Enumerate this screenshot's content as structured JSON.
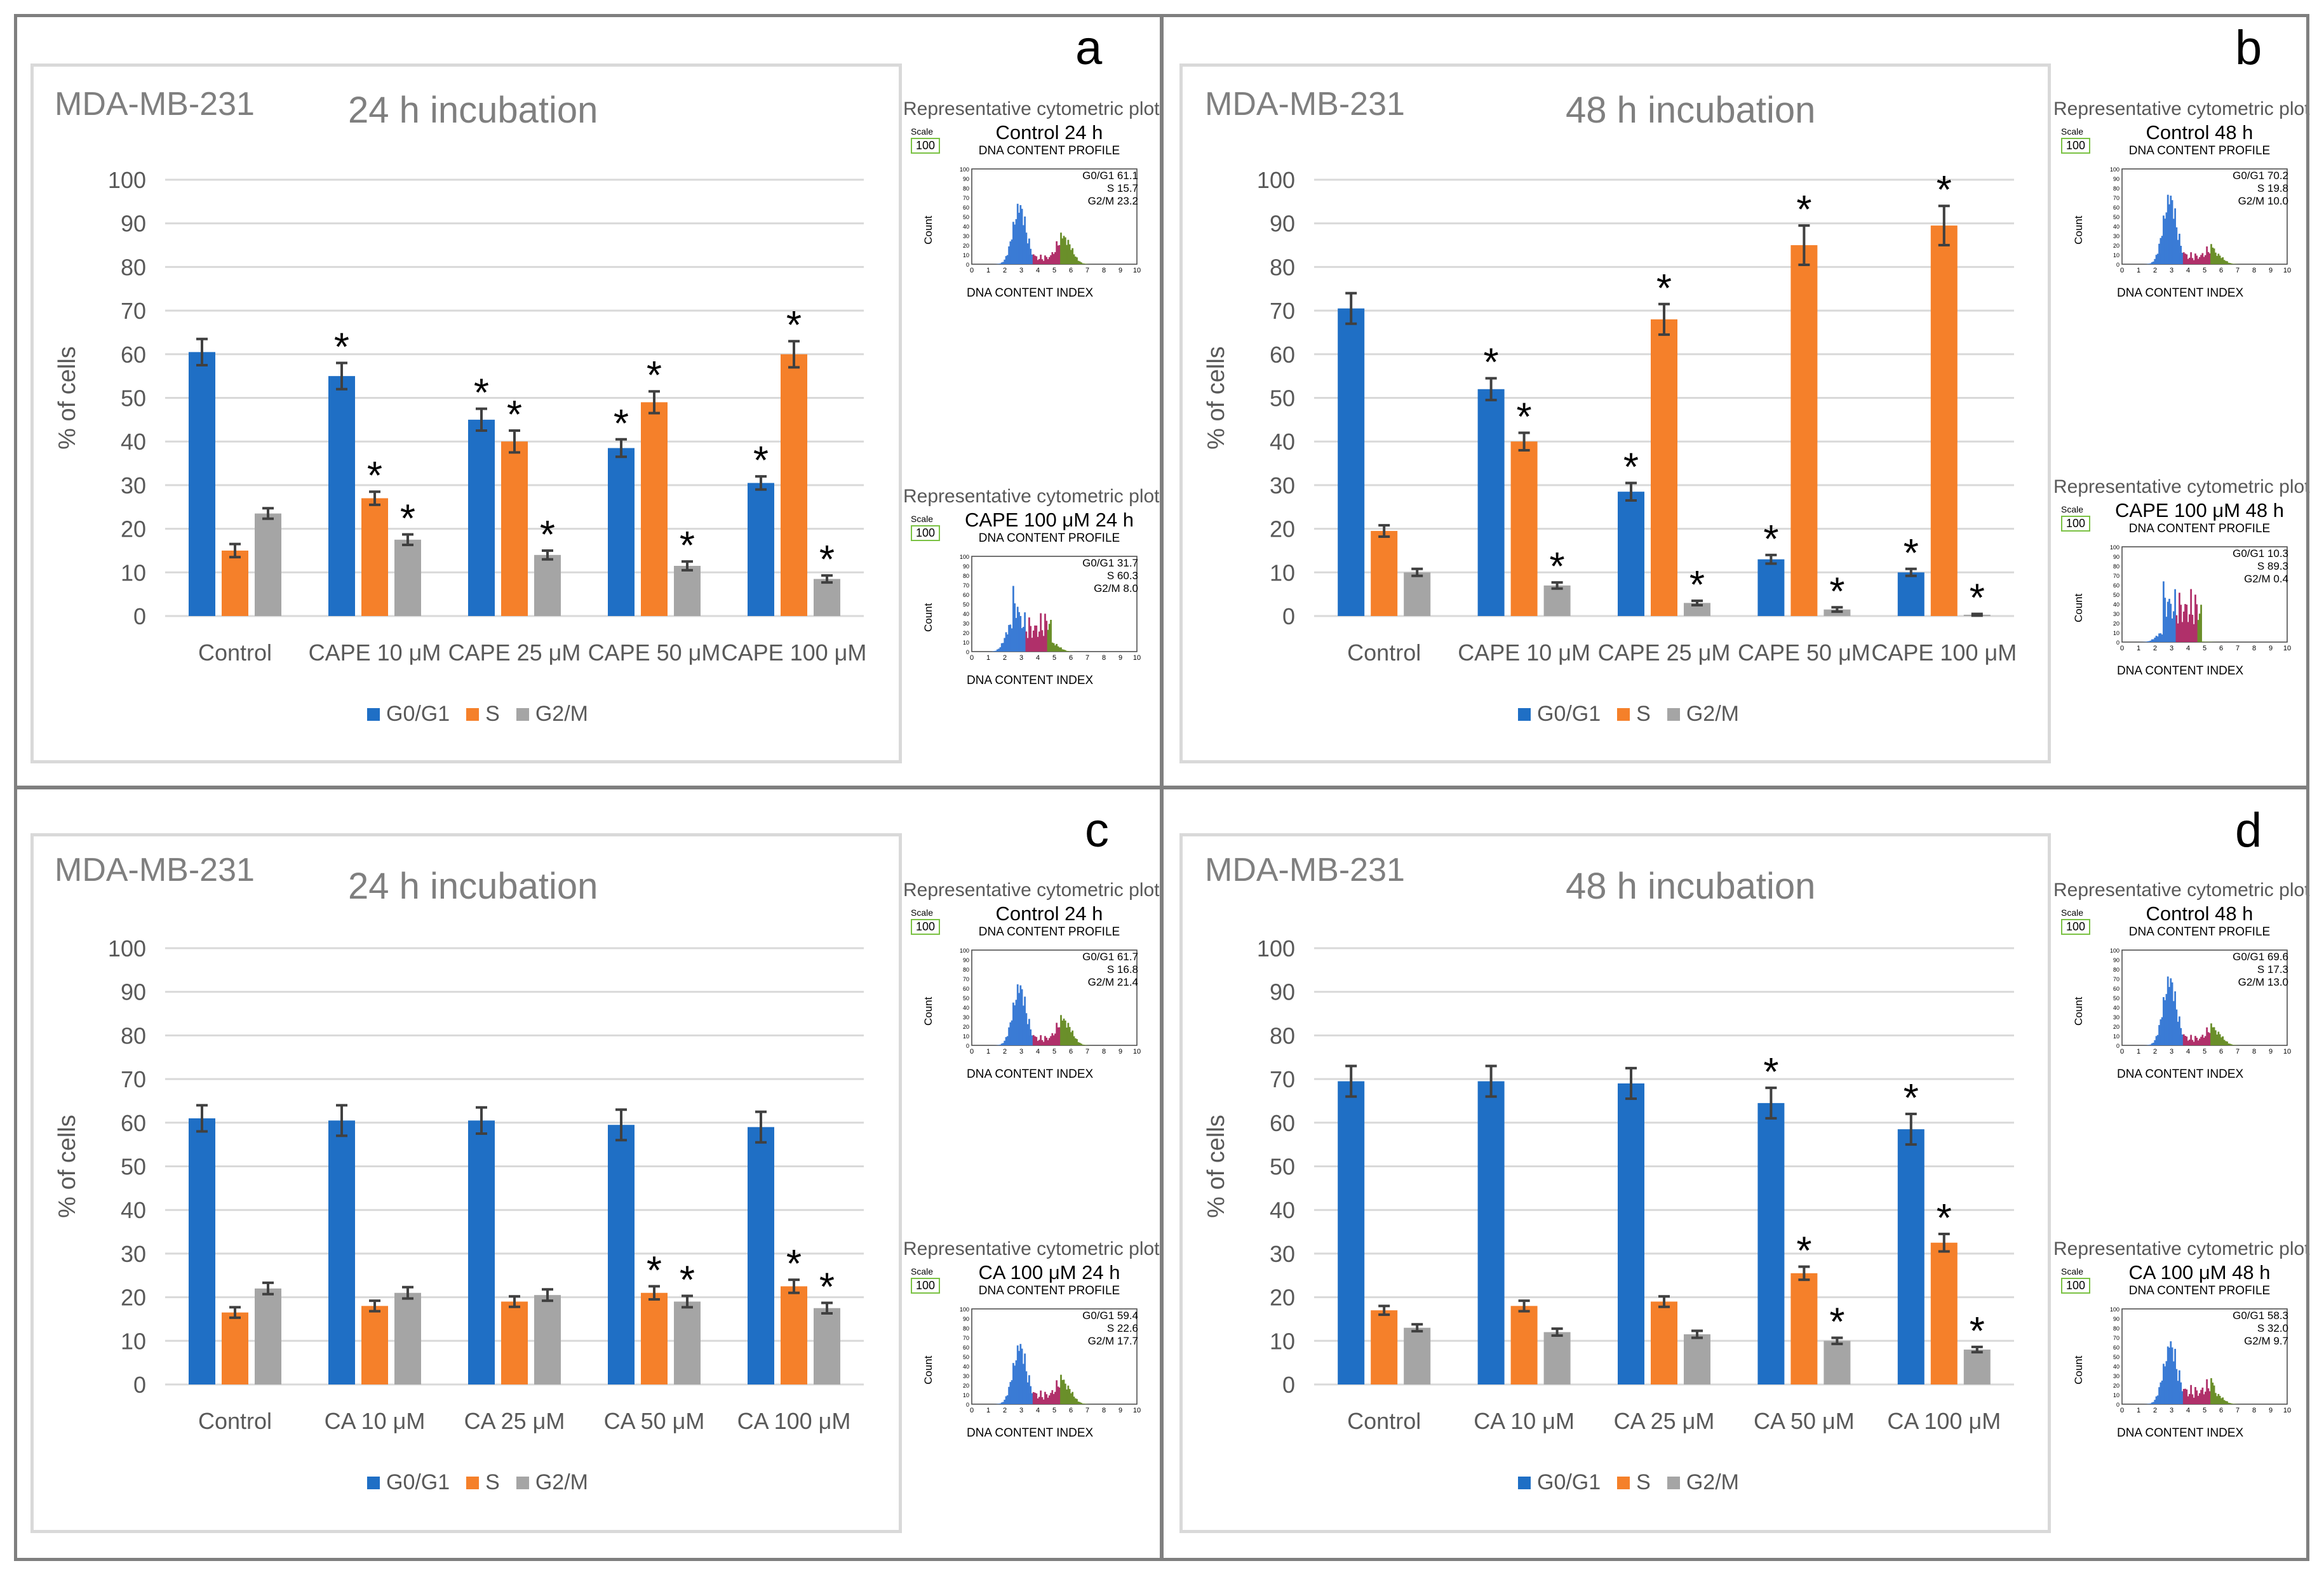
{
  "colors": {
    "g0g1": "#1f6fc5",
    "s": "#f5802a",
    "g2m": "#a5a5a5",
    "err": "#404040"
  },
  "common": {
    "y_axis_label": "% of cells",
    "legend": [
      "G0/G1",
      "S",
      "G2/M"
    ],
    "rep_label": "Representative cytometric plot",
    "scale_label": "Scale",
    "scale_value": "100",
    "profile_title": "DNA CONTENT PROFILE",
    "profile_xlabel": "DNA CONTENT INDEX",
    "profile_ylabel": "Count",
    "yticks": [
      "100",
      "90",
      "80",
      "70",
      "60",
      "50",
      "40",
      "30",
      "20",
      "10",
      "0"
    ],
    "xticks_small": [
      "0",
      "1",
      "2",
      "3",
      "4",
      "5",
      "6",
      "7",
      "8",
      "9",
      "10"
    ]
  },
  "panels": [
    {
      "letter": "a",
      "cell_line": "MDA-MB-231",
      "title": "24 h incubation",
      "cyto": [
        {
          "name": "Control 24 h",
          "g0": "G0/G1 61.1",
          "s": "S 15.7",
          "g2": "G2/M 23.2"
        },
        {
          "name": "CAPE 100 μM 24 h",
          "g0": "G0/G1 31.7",
          "s": "S 60.3",
          "g2": "G2/M 8.0"
        }
      ]
    },
    {
      "letter": "b",
      "cell_line": "MDA-MB-231",
      "title": "48 h incubation",
      "cyto": [
        {
          "name": "Control 48 h",
          "g0": "G0/G1 70.2",
          "s": "S 19.8",
          "g2": "G2/M 10.0"
        },
        {
          "name": "CAPE 100 μM 48 h",
          "g0": "G0/G1 10.3",
          "s": "S 89.3",
          "g2": "G2/M 0.4"
        }
      ]
    },
    {
      "letter": "c",
      "cell_line": "MDA-MB-231",
      "title": "24 h incubation",
      "cyto": [
        {
          "name": "Control 24 h",
          "g0": "G0/G1 61.7",
          "s": "S 16.8",
          "g2": "G2/M 21.4"
        },
        {
          "name": "CA 100 μM 24 h",
          "g0": "G0/G1 59.4",
          "s": "S 22.6",
          "g2": "G2/M 17.7"
        }
      ]
    },
    {
      "letter": "d",
      "cell_line": "MDA-MB-231",
      "title": "48 h incubation",
      "cyto": [
        {
          "name": "Control 48 h",
          "g0": "G0/G1 69.6",
          "s": "S 17.3",
          "g2": "G2/M 13.0"
        },
        {
          "name": "CA 100 μM 48 h",
          "g0": "G0/G1 58.3",
          "s": "S 32.0",
          "g2": "G2/M 9.7"
        }
      ]
    }
  ],
  "chart_data": [
    {
      "type": "bar",
      "panel": "a",
      "title": "24 h incubation",
      "ylabel": "% of cells",
      "ylim": [
        0,
        100
      ],
      "categories": [
        "Control",
        "CAPE 10 μM",
        "CAPE 25 μM",
        "CAPE 50 μM",
        "CAPE 100 μM"
      ],
      "series": [
        {
          "name": "G0/G1",
          "values": [
            60.5,
            55,
            45,
            38.5,
            30.5
          ],
          "errors": [
            3,
            3,
            2.5,
            2,
            1.5
          ],
          "sig": [
            false,
            true,
            true,
            true,
            true
          ]
        },
        {
          "name": "S",
          "values": [
            15,
            27,
            40,
            49,
            60
          ],
          "errors": [
            1.5,
            1.5,
            2.5,
            2.5,
            3
          ],
          "sig": [
            false,
            true,
            true,
            true,
            true
          ]
        },
        {
          "name": "G2/M",
          "values": [
            23.5,
            17.5,
            14,
            11.5,
            8.5
          ],
          "errors": [
            1.2,
            1.2,
            1,
            1,
            0.8
          ],
          "sig": [
            false,
            true,
            true,
            true,
            true
          ]
        }
      ]
    },
    {
      "type": "bar",
      "panel": "b",
      "title": "48 h incubation",
      "ylabel": "% of cells",
      "ylim": [
        0,
        100
      ],
      "categories": [
        "Control",
        "CAPE 10 μM",
        "CAPE 25 μM",
        "CAPE 50 μM",
        "CAPE 100 μM"
      ],
      "series": [
        {
          "name": "G0/G1",
          "values": [
            70.5,
            52,
            28.5,
            13,
            10
          ],
          "errors": [
            3.5,
            2.5,
            2,
            1,
            0.8
          ],
          "sig": [
            false,
            true,
            true,
            true,
            true
          ]
        },
        {
          "name": "S",
          "values": [
            19.5,
            40,
            68,
            85,
            89.5
          ],
          "errors": [
            1.3,
            2,
            3.5,
            4.5,
            4.5
          ],
          "sig": [
            false,
            true,
            true,
            true,
            true
          ]
        },
        {
          "name": "G2/M",
          "values": [
            10,
            7,
            3,
            1.5,
            0.3
          ],
          "errors": [
            0.8,
            0.7,
            0.5,
            0.5,
            0.2
          ],
          "sig": [
            false,
            true,
            true,
            true,
            true
          ]
        }
      ]
    },
    {
      "type": "bar",
      "panel": "c",
      "title": "24 h incubation",
      "ylabel": "% of cells",
      "ylim": [
        0,
        100
      ],
      "categories": [
        "Control",
        "CA 10 μM",
        "CA 25 μM",
        "CA 50 μM",
        "CA 100 μM"
      ],
      "series": [
        {
          "name": "G0/G1",
          "values": [
            61,
            60.5,
            60.5,
            59.5,
            59
          ],
          "errors": [
            3,
            3.5,
            3,
            3.5,
            3.5
          ],
          "sig": [
            false,
            false,
            false,
            false,
            false
          ]
        },
        {
          "name": "S",
          "values": [
            16.5,
            18,
            19,
            21,
            22.5
          ],
          "errors": [
            1.2,
            1.2,
            1.2,
            1.5,
            1.5
          ],
          "sig": [
            false,
            false,
            false,
            true,
            true
          ]
        },
        {
          "name": "G2/M",
          "values": [
            22,
            21,
            20.5,
            19,
            17.5
          ],
          "errors": [
            1.3,
            1.3,
            1.3,
            1.3,
            1.2
          ],
          "sig": [
            false,
            false,
            false,
            true,
            true
          ]
        }
      ]
    },
    {
      "type": "bar",
      "panel": "d",
      "title": "48 h incubation",
      "ylabel": "% of cells",
      "ylim": [
        0,
        100
      ],
      "categories": [
        "Control",
        "CA 10 μM",
        "CA 25 μM",
        "CA 50 μM",
        "CA 100 μM"
      ],
      "series": [
        {
          "name": "G0/G1",
          "values": [
            69.5,
            69.5,
            69,
            64.5,
            58.5
          ],
          "errors": [
            3.5,
            3.5,
            3.5,
            3.5,
            3.5
          ],
          "sig": [
            false,
            false,
            false,
            true,
            true
          ]
        },
        {
          "name": "S",
          "values": [
            17,
            18,
            19,
            25.5,
            32.5
          ],
          "errors": [
            1,
            1.2,
            1.2,
            1.5,
            2
          ],
          "sig": [
            false,
            false,
            false,
            true,
            true
          ]
        },
        {
          "name": "G2/M",
          "values": [
            13,
            12,
            11.5,
            10,
            8
          ],
          "errors": [
            0.8,
            0.8,
            0.8,
            0.7,
            0.6
          ],
          "sig": [
            false,
            false,
            false,
            true,
            true
          ]
        }
      ]
    }
  ]
}
